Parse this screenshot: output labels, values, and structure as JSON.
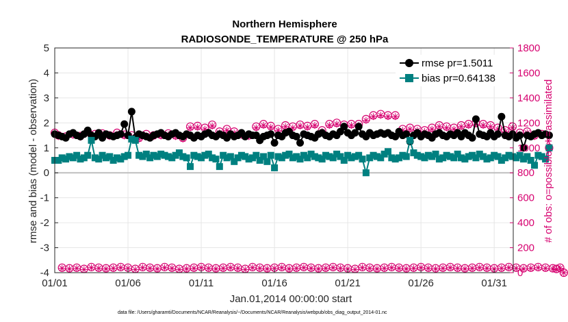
{
  "chart_data": {
    "type": "line",
    "title": [
      "Northern Hemisphere",
      "RADIOSONDE_TEMPERATURE @ 250 hPa"
    ],
    "xlabel": "Jan.01,2014 00:00:00 start",
    "ylabel_left": "rmse and bias (model - observation)",
    "ylabel_right": "# of obs: o=possible; ∗=assimilated",
    "ylim_left": [
      -4,
      5
    ],
    "ylim_right": [
      0,
      1800
    ],
    "xlim_days": [
      0,
      31.3
    ],
    "x_ticks": [
      {
        "day": 0,
        "label": "01/01"
      },
      {
        "day": 5,
        "label": "01/06"
      },
      {
        "day": 10,
        "label": "01/11"
      },
      {
        "day": 15,
        "label": "01/16"
      },
      {
        "day": 20,
        "label": "01/21"
      },
      {
        "day": 25,
        "label": "01/26"
      },
      {
        "day": 30,
        "label": "01/31"
      }
    ],
    "y_ticks_left": [
      "-4",
      "-3",
      "-2",
      "-1",
      "0",
      "1",
      "2",
      "3",
      "4",
      "5"
    ],
    "y_ticks_right": [
      "0",
      "200",
      "400",
      "600",
      "800",
      "1000",
      "1200",
      "1400",
      "1600",
      "1800"
    ],
    "samples_per_day": 4,
    "legend": [
      {
        "label": "rmse pr=1.5011",
        "color": "#000000"
      },
      {
        "label": "bias pr=0.64138",
        "color": "#008080"
      }
    ],
    "series": [
      {
        "name": "rmse",
        "color": "#000000",
        "values": [
          1.55,
          1.5,
          1.45,
          1.4,
          1.55,
          1.6,
          1.5,
          1.45,
          1.55,
          1.7,
          1.5,
          1.45,
          1.6,
          1.4,
          1.55,
          1.5,
          1.45,
          1.5,
          1.55,
          1.95,
          1.5,
          2.45,
          1.4,
          1.55,
          1.5,
          1.45,
          1.4,
          1.5,
          1.55,
          1.6,
          1.5,
          1.45,
          1.55,
          1.6,
          1.5,
          1.45,
          1.55,
          1.5,
          1.4,
          1.5,
          1.45,
          1.55,
          1.6,
          1.5,
          1.45,
          1.55,
          1.5,
          1.4,
          1.55,
          1.45,
          1.5,
          1.6,
          1.45,
          1.55,
          1.5,
          1.5,
          1.3,
          1.45,
          1.5,
          1.55,
          1.2,
          1.5,
          1.45,
          1.6,
          1.65,
          1.5,
          1.45,
          1.2,
          1.55,
          1.5,
          1.45,
          1.4,
          1.55,
          1.6,
          1.5,
          1.45,
          1.55,
          1.5,
          1.65,
          1.85,
          1.6,
          1.5,
          1.6,
          1.85,
          1.55,
          1.45,
          1.6,
          1.5,
          1.55,
          1.6,
          1.55,
          1.6,
          1.5,
          1.45,
          1.65,
          1.5,
          1.55,
          1.25,
          1.5,
          1.6,
          1.45,
          1.55,
          1.5,
          1.4,
          1.55,
          1.6,
          1.5,
          1.45,
          1.55,
          1.5,
          1.6,
          1.45,
          1.6,
          1.5,
          1.4,
          2.15,
          1.55,
          1.5,
          1.45,
          1.6,
          1.45,
          1.55,
          2.25,
          1.5,
          1.45,
          1.55,
          1.4,
          1.5,
          1.0,
          1.5,
          1.45,
          1.55,
          1.6,
          1.5,
          1.55,
          1.5
        ],
        "y_axis": "left"
      },
      {
        "name": "bias",
        "color": "#008080",
        "values": [
          0.5,
          0.5,
          0.6,
          0.55,
          0.65,
          0.6,
          0.7,
          0.55,
          0.6,
          0.7,
          1.3,
          0.6,
          0.55,
          0.7,
          0.6,
          0.65,
          0.5,
          0.6,
          0.55,
          0.65,
          0.7,
          1.35,
          1.3,
          0.7,
          0.65,
          0.75,
          0.6,
          0.7,
          0.65,
          0.75,
          0.7,
          0.65,
          0.6,
          0.7,
          0.8,
          0.65,
          0.6,
          0.25,
          0.7,
          0.65,
          0.6,
          0.7,
          0.75,
          0.6,
          0.55,
          0.25,
          0.7,
          0.6,
          0.65,
          0.45,
          0.6,
          0.7,
          0.65,
          0.55,
          0.6,
          0.7,
          0.5,
          0.65,
          0.45,
          0.7,
          0.2,
          0.65,
          0.6,
          0.7,
          0.75,
          0.6,
          0.65,
          0.55,
          0.7,
          0.6,
          0.75,
          0.65,
          0.6,
          0.55,
          0.7,
          0.65,
          0.6,
          0.75,
          0.65,
          0.5,
          0.7,
          0.6,
          0.65,
          0.7,
          0.55,
          0.0,
          0.6,
          0.7,
          0.65,
          0.6,
          0.75,
          0.85,
          0.6,
          0.55,
          0.6,
          0.7,
          0.65,
          1.3,
          0.8,
          0.7,
          0.65,
          0.6,
          0.7,
          0.65,
          0.75,
          0.55,
          0.6,
          0.7,
          0.65,
          0.6,
          0.75,
          0.6,
          0.55,
          0.65,
          0.7,
          0.6,
          0.75,
          0.65,
          0.55,
          0.6,
          0.7,
          0.65,
          0.5,
          0.6,
          0.7,
          0.65,
          0.6,
          0.7,
          0.55,
          0.65,
          0.5,
          0.3,
          0.7,
          0.65,
          0.55,
          1.0
        ],
        "y_axis": "left"
      },
      {
        "name": "possible_obs",
        "color": "#d6006f",
        "marker": "circle",
        "values": [
          1120,
          1100,
          40,
          1090,
          35,
          1110,
          40,
          1095,
          30,
          1130,
          45,
          1110,
          40,
          1115,
          35,
          1100,
          40,
          1120,
          45,
          1105,
          40,
          1100,
          30,
          1080,
          45,
          1110,
          40,
          1100,
          35,
          1105,
          45,
          1115,
          40,
          1100,
          30,
          1080,
          35,
          1170,
          40,
          1175,
          45,
          1160,
          40,
          1185,
          35,
          1130,
          40,
          1150,
          45,
          1130,
          40,
          1110,
          30,
          1100,
          45,
          1170,
          40,
          1190,
          35,
          1175,
          40,
          1150,
          45,
          1180,
          35,
          1170,
          40,
          1185,
          45,
          1175,
          40,
          1190,
          35,
          1140,
          40,
          1190,
          45,
          1200,
          40,
          1185,
          35,
          1190,
          30,
          1190,
          45,
          1230,
          40,
          1260,
          35,
          1270,
          40,
          1260,
          45,
          1260,
          40,
          1150,
          35,
          1160,
          40,
          1150,
          45,
          1140,
          40,
          1160,
          35,
          1180,
          40,
          1170,
          45,
          1160,
          40,
          1180,
          35,
          1190,
          40,
          1200,
          45,
          1190,
          40,
          1180,
          35,
          1160,
          40,
          1140,
          45,
          1170,
          40,
          1120,
          35,
          1130,
          40,
          1100,
          45,
          1110,
          40,
          1000,
          35,
          30,
          40,
          0
        ],
        "y_axis": "right"
      },
      {
        "name": "assimilated_obs",
        "color": "#d6006f",
        "marker": "asterisk",
        "values": [
          1110,
          1090,
          35,
          1080,
          30,
          1100,
          35,
          1085,
          25,
          1120,
          40,
          1100,
          35,
          1105,
          30,
          1090,
          35,
          1110,
          40,
          1095,
          35,
          1090,
          25,
          1070,
          40,
          1100,
          35,
          1090,
          30,
          1095,
          40,
          1105,
          35,
          1090,
          25,
          1070,
          30,
          1160,
          35,
          1165,
          40,
          1150,
          35,
          1175,
          30,
          1120,
          35,
          1140,
          40,
          1120,
          35,
          1100,
          25,
          1090,
          40,
          1160,
          35,
          1180,
          30,
          1165,
          35,
          1140,
          40,
          1170,
          30,
          1160,
          35,
          1175,
          40,
          1165,
          35,
          1180,
          30,
          1130,
          35,
          1180,
          40,
          1190,
          35,
          1175,
          30,
          1180,
          25,
          1180,
          40,
          1220,
          35,
          1250,
          30,
          1260,
          35,
          1250,
          40,
          1250,
          35,
          1140,
          30,
          1150,
          35,
          1140,
          40,
          1130,
          35,
          1150,
          30,
          1170,
          35,
          1160,
          40,
          1150,
          35,
          1170,
          30,
          1180,
          35,
          1190,
          40,
          1180,
          35,
          1170,
          30,
          1150,
          35,
          1130,
          40,
          1160,
          35,
          1110,
          30,
          1120,
          35,
          1090,
          40,
          1100,
          35,
          990,
          30,
          25,
          35,
          0
        ],
        "y_axis": "right"
      }
    ],
    "zero_line": true,
    "footnote": "data file: /Users/gharamti/Documents/NCAR/Reanalysis/~/Documents/NCAR/Reanalysis/webpub/obs_diag_output_2014-01.nc"
  }
}
